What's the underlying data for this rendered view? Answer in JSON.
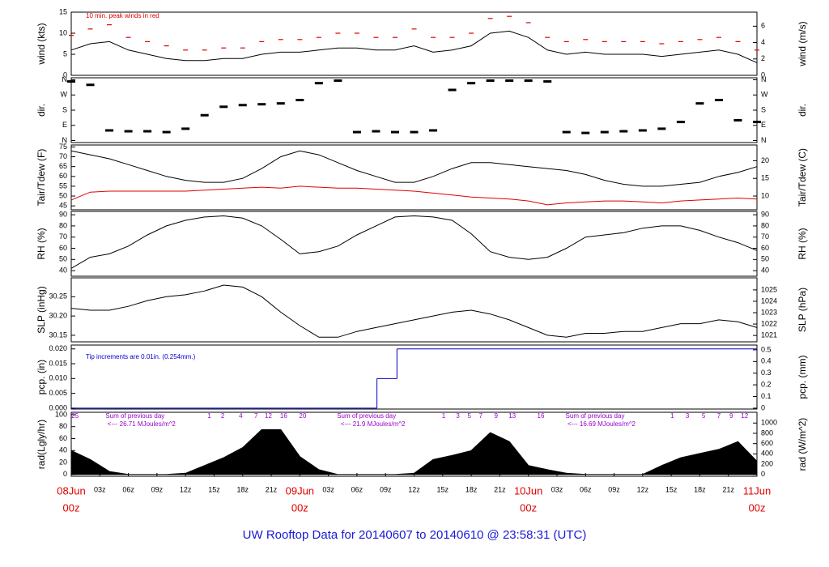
{
  "title": "UW Rooftop Data for 20140607  to  20140610 @ 23:58:31  (UTC)",
  "chart_data": [
    {
      "type": "line",
      "ylabel": "wind (kts)",
      "y2label": "wind (m/s)",
      "annotation": "10 min. peak winds in red",
      "annotation_color": "#e00000",
      "x": [
        0,
        2,
        4,
        6,
        8,
        10,
        12,
        14,
        16,
        18,
        20,
        22,
        24,
        26,
        28,
        30,
        32,
        34,
        36,
        38,
        40,
        42,
        44,
        46,
        48,
        50,
        52,
        54,
        56,
        58,
        60,
        62,
        64,
        66,
        68,
        70,
        72
      ],
      "xlim": [
        0,
        72
      ],
      "ylim": [
        0,
        15
      ],
      "yticks": [
        0,
        5,
        10,
        15
      ],
      "y2lim": [
        0,
        7.717
      ],
      "y2ticks": [
        0,
        2,
        4,
        6
      ],
      "series": [
        {
          "color": "#000000",
          "values": [
            6,
            7.5,
            8,
            6,
            5,
            4,
            3.5,
            3.5,
            4,
            4,
            5,
            5.5,
            5.5,
            6,
            6.5,
            6.5,
            6,
            6,
            7,
            5.5,
            6,
            7,
            10,
            10.5,
            9,
            6,
            5,
            5.5,
            5,
            5,
            5,
            4.5,
            5,
            5.5,
            6,
            5,
            3
          ]
        },
        {
          "color": "#e00000",
          "marker": "dash",
          "values": [
            9.5,
            11,
            12,
            9,
            8,
            7,
            6,
            6,
            6.5,
            6.5,
            8,
            8.5,
            8.5,
            9,
            10,
            10,
            9,
            9,
            11,
            9,
            9,
            10,
            13.5,
            14,
            12.5,
            9,
            8,
            8.5,
            8,
            8,
            8,
            7.5,
            8,
            8.5,
            9,
            8,
            6
          ]
        }
      ]
    },
    {
      "type": "scatter",
      "ylabel": "dir.",
      "y2label": "dir.",
      "x": [
        0,
        2,
        4,
        6,
        8,
        10,
        12,
        14,
        16,
        18,
        20,
        22,
        24,
        26,
        28,
        30,
        32,
        34,
        36,
        38,
        40,
        42,
        44,
        46,
        48,
        50,
        52,
        54,
        56,
        58,
        60,
        62,
        64,
        66,
        68,
        70,
        72
      ],
      "xlim": [
        0,
        72
      ],
      "ylim": [
        -12,
        372
      ],
      "yticks": [
        {
          "value": 0,
          "label": "N"
        },
        {
          "value": 90,
          "label": "E"
        },
        {
          "value": 180,
          "label": "S"
        },
        {
          "value": 270,
          "label": "W"
        },
        {
          "value": 360,
          "label": "N"
        }
      ],
      "y2lim": [
        -12,
        372
      ],
      "y2ticks": [
        {
          "value": 0,
          "label": "N"
        },
        {
          "value": 90,
          "label": "E"
        },
        {
          "value": 180,
          "label": "S"
        },
        {
          "value": 270,
          "label": "W"
        },
        {
          "value": 360,
          "label": "N"
        }
      ],
      "series": [
        {
          "color": "#000000",
          "values": [
            350,
            330,
            60,
            55,
            55,
            50,
            70,
            150,
            200,
            210,
            215,
            220,
            240,
            340,
            355,
            50,
            55,
            50,
            50,
            60,
            300,
            340,
            355,
            355,
            355,
            350,
            50,
            45,
            50,
            55,
            60,
            70,
            110,
            220,
            240,
            120,
            110
          ]
        }
      ]
    },
    {
      "type": "line",
      "ylabel": "Tair/Tdew (F)",
      "y2label": "Tair/Tdew (C)",
      "x": [
        0,
        2,
        4,
        6,
        8,
        10,
        12,
        14,
        16,
        18,
        20,
        22,
        24,
        26,
        28,
        30,
        32,
        34,
        36,
        38,
        40,
        42,
        44,
        46,
        48,
        50,
        52,
        54,
        56,
        58,
        60,
        62,
        64,
        66,
        68,
        70,
        72
      ],
      "xlim": [
        0,
        72
      ],
      "ylim": [
        43,
        76
      ],
      "yticks": [
        45,
        50,
        55,
        60,
        65,
        70,
        75
      ],
      "y2lim": [
        6.111,
        24.444
      ],
      "y2ticks": [
        10,
        15,
        20
      ],
      "series": [
        {
          "color": "#000000",
          "values": [
            73,
            71,
            69,
            66,
            63,
            60,
            58,
            57,
            57,
            59,
            64,
            70,
            73,
            71,
            67,
            63,
            60,
            57,
            57,
            60,
            64,
            67,
            67,
            66,
            65,
            64,
            63,
            61,
            58,
            56,
            55,
            55,
            56,
            57,
            60,
            62,
            65
          ]
        },
        {
          "color": "#e00000",
          "values": [
            48,
            52,
            52.5,
            52.5,
            52.5,
            52.5,
            52.5,
            53,
            53.5,
            54,
            54.5,
            54,
            55,
            54.5,
            54,
            54,
            53.5,
            53,
            52.5,
            51.5,
            50.5,
            49.5,
            49,
            48.5,
            47.5,
            45.5,
            46.5,
            47,
            47.5,
            47.5,
            47,
            46.5,
            47.5,
            48,
            48.5,
            49,
            48.5
          ]
        }
      ]
    },
    {
      "type": "line",
      "ylabel": "RH (%)",
      "y2label": "RH (%)",
      "x": [
        0,
        2,
        4,
        6,
        8,
        10,
        12,
        14,
        16,
        18,
        20,
        22,
        24,
        26,
        28,
        30,
        32,
        34,
        36,
        38,
        40,
        42,
        44,
        46,
        48,
        50,
        52,
        54,
        56,
        58,
        60,
        62,
        64,
        66,
        68,
        70,
        72
      ],
      "xlim": [
        0,
        72
      ],
      "ylim": [
        35,
        93
      ],
      "yticks": [
        40,
        50,
        60,
        70,
        80,
        90
      ],
      "y2lim": [
        35,
        93
      ],
      "y2ticks": [
        40,
        50,
        60,
        70,
        80,
        90
      ],
      "series": [
        {
          "color": "#000000",
          "values": [
            42,
            52,
            55,
            62,
            72,
            80,
            85,
            88,
            89,
            87,
            80,
            68,
            55,
            57,
            62,
            72,
            80,
            88,
            89,
            88,
            85,
            73,
            57,
            52,
            50,
            52,
            60,
            70,
            72,
            74,
            78,
            80,
            80,
            76,
            70,
            65,
            58
          ]
        }
      ]
    },
    {
      "type": "line",
      "ylabel": "SLP (inHg)",
      "y2label": "SLP (hPa)",
      "x": [
        0,
        2,
        4,
        6,
        8,
        10,
        12,
        14,
        16,
        18,
        20,
        22,
        24,
        26,
        28,
        30,
        32,
        34,
        36,
        38,
        40,
        42,
        44,
        46,
        48,
        50,
        52,
        54,
        56,
        58,
        60,
        62,
        64,
        66,
        68,
        70,
        72
      ],
      "xlim": [
        0,
        72
      ],
      "ylim": [
        30.133,
        30.299
      ],
      "yticks": [
        30.15,
        {
          "value": 30.2,
          "label": "30.20"
        },
        30.25
      ],
      "y2lim": [
        1020.44,
        1026.06
      ],
      "y2ticks": [
        1021,
        1022,
        1023,
        1024,
        1025
      ],
      "series": [
        {
          "color": "#000000",
          "values": [
            30.22,
            30.215,
            30.215,
            30.225,
            30.24,
            30.25,
            30.255,
            30.265,
            30.28,
            30.275,
            30.25,
            30.21,
            30.175,
            30.145,
            30.145,
            30.16,
            30.17,
            30.18,
            30.19,
            30.2,
            30.21,
            30.215,
            30.205,
            30.19,
            30.17,
            30.15,
            30.145,
            30.155,
            30.155,
            30.16,
            30.16,
            30.17,
            30.18,
            30.18,
            30.19,
            30.185,
            30.17
          ]
        }
      ]
    },
    {
      "type": "step",
      "ylabel": "pcp. (in)",
      "y2label": "pcp. (mm)",
      "annotation": "Tip increments are 0.01in. (0.254mm.)",
      "annotation_color": "#0000cc",
      "x": [
        0,
        32.1,
        34.2
      ],
      "xlim": [
        0,
        72
      ],
      "ylim": [
        -0.0003,
        0.0213
      ],
      "yticks": [
        {
          "value": 0,
          "label": "0.000"
        },
        {
          "value": 0.005,
          "label": "0.005"
        },
        {
          "value": 0.01,
          "label": "0.010"
        },
        {
          "value": 0.015,
          "label": "0.015"
        },
        {
          "value": 0.02,
          "label": "0.020"
        }
      ],
      "y2lim": [
        -0.00762,
        0.541
      ],
      "y2ticks": [
        0,
        0.1,
        0.2,
        0.3,
        0.4,
        0.5
      ],
      "series": [
        {
          "color": "#0000cc",
          "values": [
            0,
            0.01,
            0.02
          ]
        }
      ]
    },
    {
      "type": "area",
      "ylabel": "rad(Lgly/hr)",
      "y2label": "rad (W/m^2)",
      "x": [
        0,
        2,
        4,
        6,
        8,
        10,
        12,
        14,
        16,
        18,
        20,
        22,
        24,
        26,
        28,
        30,
        32,
        34,
        36,
        38,
        40,
        42,
        44,
        46,
        48,
        50,
        52,
        54,
        56,
        58,
        60,
        62,
        64,
        66,
        68,
        70,
        72
      ],
      "xlim": [
        0,
        72
      ],
      "ylim": [
        -3,
        104
      ],
      "yticks": [
        0,
        20,
        40,
        60,
        80,
        100
      ],
      "y2lim": [
        -34.9,
        1208.7
      ],
      "y2ticks": [
        0,
        200,
        400,
        600,
        800,
        1000
      ],
      "series": [
        {
          "color": "#000000",
          "values": [
            40,
            25,
            5,
            0,
            0,
            0,
            2,
            15,
            28,
            45,
            75,
            75,
            30,
            8,
            0,
            0,
            0,
            0,
            2,
            25,
            32,
            40,
            70,
            55,
            15,
            8,
            2,
            0,
            0,
            0,
            0,
            15,
            28,
            35,
            42,
            55,
            22
          ]
        }
      ],
      "label_color": "#9900cc",
      "hour_labels": [
        {
          "x": 0.4,
          "label": "25"
        },
        {
          "x": 14.5,
          "label": "1"
        },
        {
          "x": 15.9,
          "label": "2"
        },
        {
          "x": 17.8,
          "label": "4"
        },
        {
          "x": 19.4,
          "label": "7"
        },
        {
          "x": 20.7,
          "label": "12"
        },
        {
          "x": 22.3,
          "label": "16"
        },
        {
          "x": 24.3,
          "label": "20"
        },
        {
          "x": 39.1,
          "label": "1"
        },
        {
          "x": 40.6,
          "label": "3"
        },
        {
          "x": 41.8,
          "label": "5"
        },
        {
          "x": 43.0,
          "label": "7"
        },
        {
          "x": 44.6,
          "label": "9"
        },
        {
          "x": 46.3,
          "label": "13"
        },
        {
          "x": 49.3,
          "label": "16"
        },
        {
          "x": 63.1,
          "label": "1"
        },
        {
          "x": 64.7,
          "label": "3"
        },
        {
          "x": 66.4,
          "label": "5"
        },
        {
          "x": 68.0,
          "label": "7"
        },
        {
          "x": 69.3,
          "label": "9"
        },
        {
          "x": 70.7,
          "label": "12"
        }
      ],
      "sum_labels": [
        {
          "x": 6.7,
          "label": "Sum of previous day",
          "total": "<--- 26.71 MJoules/m^2"
        },
        {
          "x": 31.0,
          "label": "Sum of previous day",
          "total": "<--- 21.9 MJoules/m^2"
        },
        {
          "x": 55.0,
          "label": "Sum of previous day",
          "total": "<--- 16.69 MJoules/m^2"
        }
      ],
      "xticks": [
        {
          "value": 3,
          "label": "03z"
        },
        {
          "value": 6,
          "label": "06z"
        },
        {
          "value": 9,
          "label": "09z"
        },
        {
          "value": 12,
          "label": "12z"
        },
        {
          "value": 15,
          "label": "15z"
        },
        {
          "value": 18,
          "label": "18z"
        },
        {
          "value": 21,
          "label": "21z"
        },
        {
          "value": 27,
          "label": "03z"
        },
        {
          "value": 30,
          "label": "06z"
        },
        {
          "value": 33,
          "label": "09z"
        },
        {
          "value": 36,
          "label": "12z"
        },
        {
          "value": 39,
          "label": "15z"
        },
        {
          "value": 42,
          "label": "18z"
        },
        {
          "value": 45,
          "label": "21z"
        },
        {
          "value": 51,
          "label": "03z"
        },
        {
          "value": 54,
          "label": "06z"
        },
        {
          "value": 57,
          "label": "09z"
        },
        {
          "value": 60,
          "label": "12z"
        },
        {
          "value": 63,
          "label": "15z"
        },
        {
          "value": 66,
          "label": "18z"
        },
        {
          "value": 69,
          "label": "21z"
        }
      ],
      "major_xticks": [
        {
          "value": 0,
          "label": "08Jun",
          "sublabel": "00z"
        },
        {
          "value": 24,
          "label": "09Jun",
          "sublabel": "00z"
        },
        {
          "value": 48,
          "label": "10Jun",
          "sublabel": "00z"
        },
        {
          "value": 72,
          "label": "11Jun",
          "sublabel": "00z"
        }
      ],
      "major_color": "#e00000"
    }
  ]
}
